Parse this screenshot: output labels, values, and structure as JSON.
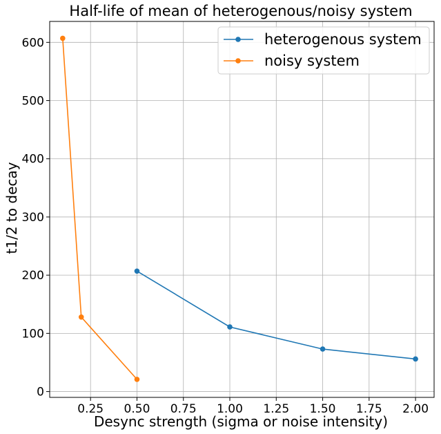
{
  "chart_data": {
    "type": "line",
    "title": "Half-life of mean of heterogenous/noisy system",
    "xlabel": "Desync strength (sigma or noise intensity)",
    "ylabel": "t1/2 to decay",
    "xlim": [
      0.03,
      2.1
    ],
    "ylim": [
      -10,
      636
    ],
    "xticks": [
      0.25,
      0.5,
      0.75,
      1.0,
      1.25,
      1.5,
      1.75,
      2.0
    ],
    "xtick_labels": [
      "0.25",
      "0.50",
      "0.75",
      "1.00",
      "1.25",
      "1.50",
      "1.75",
      "2.00"
    ],
    "yticks": [
      0,
      100,
      200,
      300,
      400,
      500,
      600
    ],
    "ytick_labels": [
      "0",
      "100",
      "200",
      "300",
      "400",
      "500",
      "600"
    ],
    "grid": true,
    "legend_position": "top-right",
    "series": [
      {
        "name": "heterogenous system",
        "color": "#1f77b4",
        "marker": "circle",
        "x": [
          0.5,
          1.0,
          1.5,
          2.0
        ],
        "y": [
          207,
          111,
          73,
          56
        ]
      },
      {
        "name": "noisy system",
        "color": "#ff7f0e",
        "marker": "circle",
        "x": [
          0.1,
          0.2,
          0.5
        ],
        "y": [
          607,
          128,
          21
        ]
      }
    ]
  }
}
